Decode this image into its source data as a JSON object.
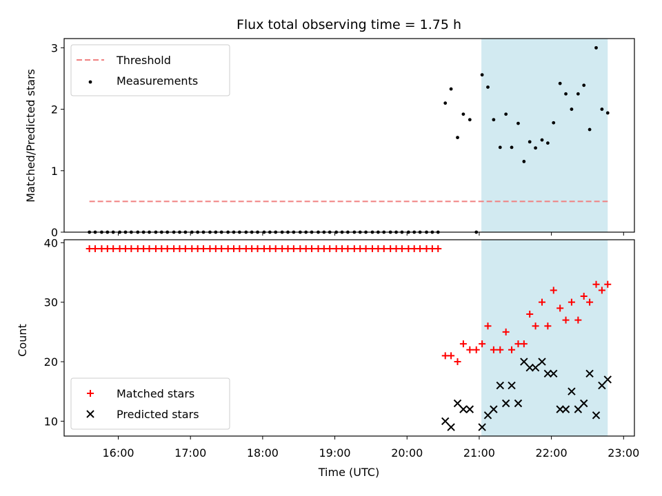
{
  "chart_data": {
    "type": "scatter",
    "title": "Flux total observing time = 1.75 h",
    "xlabel": "Time (UTC)",
    "x_unit": "hour_of_day",
    "xlim": [
      15.25,
      23.15
    ],
    "x_ticks": [
      16,
      17,
      18,
      19,
      20,
      21,
      22,
      23
    ],
    "x_tick_labels": [
      "16:00",
      "17:00",
      "18:00",
      "19:00",
      "20:00",
      "21:00",
      "22:00",
      "23:00"
    ],
    "highlight_span": {
      "x_start": 21.03,
      "x_end": 22.78,
      "color": "#add8e6"
    },
    "panels": [
      {
        "ylabel": "Matched/Predicted stars",
        "ylim": [
          0,
          3.15
        ],
        "y_ticks": [
          0,
          1,
          2,
          3
        ],
        "legend_position": "upper-left",
        "threshold": {
          "name": "Threshold",
          "value": 0.5,
          "x_start": 15.6,
          "x_end": 22.78,
          "color": "#f08080"
        },
        "measurements": {
          "name": "Measurements",
          "color": "#000000",
          "points": [
            [
              15.6,
              0
            ],
            [
              15.68,
              0
            ],
            [
              15.77,
              0
            ],
            [
              15.85,
              0
            ],
            [
              15.93,
              0
            ],
            [
              16.02,
              0
            ],
            [
              16.1,
              0
            ],
            [
              16.18,
              0
            ],
            [
              16.27,
              0
            ],
            [
              16.35,
              0
            ],
            [
              16.43,
              0
            ],
            [
              16.52,
              0
            ],
            [
              16.6,
              0
            ],
            [
              16.68,
              0
            ],
            [
              16.77,
              0
            ],
            [
              16.85,
              0
            ],
            [
              16.93,
              0
            ],
            [
              17.02,
              0
            ],
            [
              17.1,
              0
            ],
            [
              17.18,
              0
            ],
            [
              17.27,
              0
            ],
            [
              17.35,
              0
            ],
            [
              17.43,
              0
            ],
            [
              17.52,
              0
            ],
            [
              17.6,
              0
            ],
            [
              17.68,
              0
            ],
            [
              17.77,
              0
            ],
            [
              17.85,
              0
            ],
            [
              17.93,
              0
            ],
            [
              18.02,
              0
            ],
            [
              18.1,
              0
            ],
            [
              18.18,
              0
            ],
            [
              18.27,
              0
            ],
            [
              18.35,
              0
            ],
            [
              18.43,
              0
            ],
            [
              18.52,
              0
            ],
            [
              18.6,
              0
            ],
            [
              18.68,
              0
            ],
            [
              18.77,
              0
            ],
            [
              18.85,
              0
            ],
            [
              18.93,
              0
            ],
            [
              19.02,
              0
            ],
            [
              19.1,
              0
            ],
            [
              19.18,
              0
            ],
            [
              19.27,
              0
            ],
            [
              19.35,
              0
            ],
            [
              19.43,
              0
            ],
            [
              19.52,
              0
            ],
            [
              19.6,
              0
            ],
            [
              19.68,
              0
            ],
            [
              19.77,
              0
            ],
            [
              19.85,
              0
            ],
            [
              19.93,
              0
            ],
            [
              20.02,
              0
            ],
            [
              20.1,
              0
            ],
            [
              20.18,
              0
            ],
            [
              20.27,
              0
            ],
            [
              20.35,
              0
            ],
            [
              20.43,
              0
            ],
            [
              20.53,
              2.1
            ],
            [
              20.61,
              2.33
            ],
            [
              20.7,
              1.54
            ],
            [
              20.78,
              1.92
            ],
            [
              20.87,
              1.83
            ],
            [
              20.96,
              0
            ],
            [
              21.04,
              2.56
            ],
            [
              21.12,
              2.36
            ],
            [
              21.2,
              1.83
            ],
            [
              21.29,
              1.38
            ],
            [
              21.37,
              1.92
            ],
            [
              21.45,
              1.38
            ],
            [
              21.54,
              1.77
            ],
            [
              21.62,
              1.15
            ],
            [
              21.7,
              1.47
            ],
            [
              21.78,
              1.37
            ],
            [
              21.87,
              1.5
            ],
            [
              21.95,
              1.45
            ],
            [
              22.03,
              1.78
            ],
            [
              22.12,
              2.42
            ],
            [
              22.2,
              2.25
            ],
            [
              22.28,
              2.0
            ],
            [
              22.37,
              2.25
            ],
            [
              22.45,
              2.39
            ],
            [
              22.53,
              1.67
            ],
            [
              22.62,
              3.0
            ],
            [
              22.7,
              2.0
            ],
            [
              22.78,
              1.94
            ]
          ]
        }
      },
      {
        "ylabel": "Count",
        "ylim": [
          7.5,
          40.5
        ],
        "y_ticks": [
          10,
          20,
          30,
          40
        ],
        "legend_position": "lower-left",
        "series": [
          {
            "name": "Matched stars",
            "marker": "plus",
            "color": "#ff0000",
            "points": [
              [
                15.6,
                39
              ],
              [
                15.68,
                39
              ],
              [
                15.77,
                39
              ],
              [
                15.85,
                39
              ],
              [
                15.93,
                39
              ],
              [
                16.02,
                39
              ],
              [
                16.1,
                39
              ],
              [
                16.18,
                39
              ],
              [
                16.27,
                39
              ],
              [
                16.35,
                39
              ],
              [
                16.43,
                39
              ],
              [
                16.52,
                39
              ],
              [
                16.6,
                39
              ],
              [
                16.68,
                39
              ],
              [
                16.77,
                39
              ],
              [
                16.85,
                39
              ],
              [
                16.93,
                39
              ],
              [
                17.02,
                39
              ],
              [
                17.1,
                39
              ],
              [
                17.18,
                39
              ],
              [
                17.27,
                39
              ],
              [
                17.35,
                39
              ],
              [
                17.43,
                39
              ],
              [
                17.52,
                39
              ],
              [
                17.6,
                39
              ],
              [
                17.68,
                39
              ],
              [
                17.77,
                39
              ],
              [
                17.85,
                39
              ],
              [
                17.93,
                39
              ],
              [
                18.02,
                39
              ],
              [
                18.1,
                39
              ],
              [
                18.18,
                39
              ],
              [
                18.27,
                39
              ],
              [
                18.35,
                39
              ],
              [
                18.43,
                39
              ],
              [
                18.52,
                39
              ],
              [
                18.6,
                39
              ],
              [
                18.68,
                39
              ],
              [
                18.77,
                39
              ],
              [
                18.85,
                39
              ],
              [
                18.93,
                39
              ],
              [
                19.02,
                39
              ],
              [
                19.1,
                39
              ],
              [
                19.18,
                39
              ],
              [
                19.27,
                39
              ],
              [
                19.35,
                39
              ],
              [
                19.43,
                39
              ],
              [
                19.52,
                39
              ],
              [
                19.6,
                39
              ],
              [
                19.68,
                39
              ],
              [
                19.77,
                39
              ],
              [
                19.85,
                39
              ],
              [
                19.93,
                39
              ],
              [
                20.02,
                39
              ],
              [
                20.1,
                39
              ],
              [
                20.18,
                39
              ],
              [
                20.27,
                39
              ],
              [
                20.35,
                39
              ],
              [
                20.43,
                39
              ],
              [
                20.53,
                21
              ],
              [
                20.61,
                21
              ],
              [
                20.7,
                20
              ],
              [
                20.78,
                23
              ],
              [
                20.87,
                22
              ],
              [
                20.96,
                22
              ],
              [
                21.04,
                23
              ],
              [
                21.12,
                26
              ],
              [
                21.2,
                22
              ],
              [
                21.29,
                22
              ],
              [
                21.37,
                25
              ],
              [
                21.45,
                22
              ],
              [
                21.54,
                23
              ],
              [
                21.62,
                23
              ],
              [
                21.7,
                28
              ],
              [
                21.78,
                26
              ],
              [
                21.87,
                30
              ],
              [
                21.95,
                26
              ],
              [
                22.03,
                32
              ],
              [
                22.12,
                29
              ],
              [
                22.2,
                27
              ],
              [
                22.28,
                30
              ],
              [
                22.37,
                27
              ],
              [
                22.45,
                31
              ],
              [
                22.53,
                30
              ],
              [
                22.62,
                33
              ],
              [
                22.7,
                32
              ],
              [
                22.78,
                33
              ]
            ]
          },
          {
            "name": "Predicted stars",
            "marker": "x",
            "color": "#000000",
            "points": [
              [
                20.53,
                10
              ],
              [
                20.61,
                9
              ],
              [
                20.7,
                13
              ],
              [
                20.78,
                12
              ],
              [
                20.87,
                12
              ],
              [
                21.04,
                9
              ],
              [
                21.12,
                11
              ],
              [
                21.2,
                12
              ],
              [
                21.29,
                16
              ],
              [
                21.37,
                13
              ],
              [
                21.45,
                16
              ],
              [
                21.54,
                13
              ],
              [
                21.62,
                20
              ],
              [
                21.7,
                19
              ],
              [
                21.78,
                19
              ],
              [
                21.87,
                20
              ],
              [
                21.95,
                18
              ],
              [
                22.03,
                18
              ],
              [
                22.12,
                12
              ],
              [
                22.2,
                12
              ],
              [
                22.28,
                15
              ],
              [
                22.37,
                12
              ],
              [
                22.45,
                13
              ],
              [
                22.53,
                18
              ],
              [
                22.62,
                11
              ],
              [
                22.7,
                16
              ],
              [
                22.78,
                17
              ]
            ]
          }
        ]
      }
    ]
  }
}
